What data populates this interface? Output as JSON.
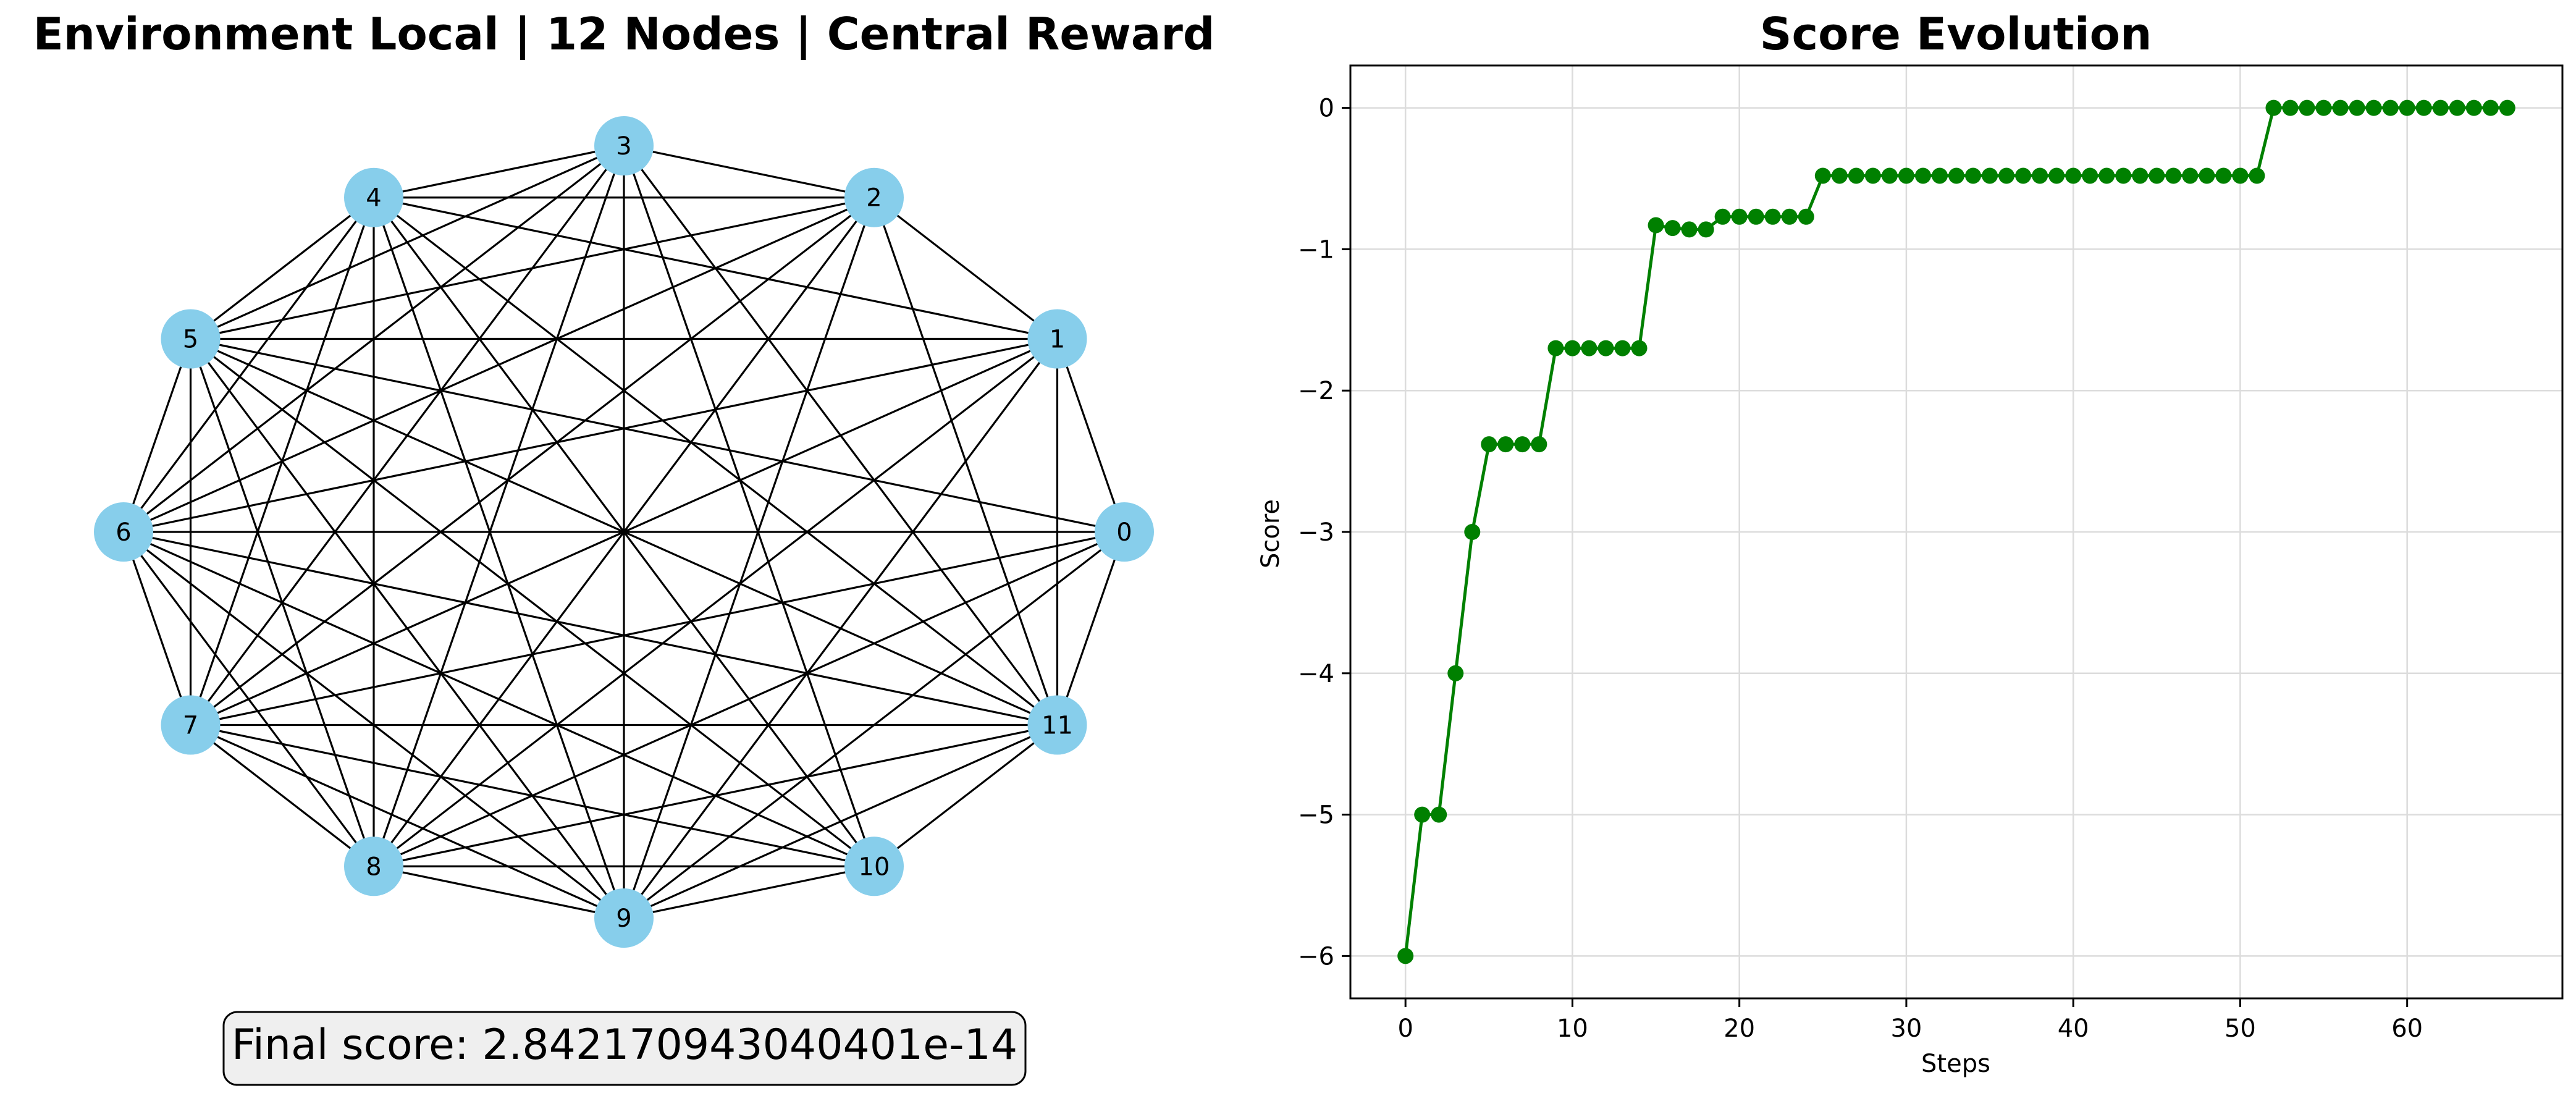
{
  "network": {
    "title": "Environment Local | 12 Nodes | Central Reward",
    "node_color": "#87ceeb",
    "edge_color": "#000000",
    "nodes": [
      "0",
      "1",
      "2",
      "3",
      "4",
      "5",
      "6",
      "7",
      "8",
      "9",
      "10",
      "11"
    ],
    "edges": [
      [
        0,
        1
      ],
      [
        0,
        5
      ],
      [
        0,
        6
      ],
      [
        0,
        7
      ],
      [
        0,
        8
      ],
      [
        0,
        9
      ],
      [
        0,
        11
      ],
      [
        1,
        2
      ],
      [
        1,
        4
      ],
      [
        1,
        5
      ],
      [
        1,
        6
      ],
      [
        1,
        7
      ],
      [
        1,
        8
      ],
      [
        1,
        9
      ],
      [
        1,
        11
      ],
      [
        2,
        3
      ],
      [
        2,
        4
      ],
      [
        2,
        5
      ],
      [
        2,
        6
      ],
      [
        2,
        7
      ],
      [
        2,
        8
      ],
      [
        2,
        9
      ],
      [
        2,
        11
      ],
      [
        3,
        4
      ],
      [
        3,
        5
      ],
      [
        3,
        6
      ],
      [
        3,
        7
      ],
      [
        3,
        8
      ],
      [
        3,
        9
      ],
      [
        3,
        10
      ],
      [
        3,
        11
      ],
      [
        4,
        5
      ],
      [
        4,
        6
      ],
      [
        4,
        7
      ],
      [
        4,
        8
      ],
      [
        4,
        9
      ],
      [
        4,
        10
      ],
      [
        4,
        11
      ],
      [
        5,
        6
      ],
      [
        5,
        7
      ],
      [
        5,
        8
      ],
      [
        5,
        9
      ],
      [
        5,
        10
      ],
      [
        5,
        11
      ],
      [
        6,
        7
      ],
      [
        6,
        8
      ],
      [
        6,
        9
      ],
      [
        6,
        10
      ],
      [
        6,
        11
      ],
      [
        7,
        8
      ],
      [
        7,
        9
      ],
      [
        7,
        10
      ],
      [
        7,
        11
      ],
      [
        8,
        9
      ],
      [
        8,
        10
      ],
      [
        8,
        11
      ],
      [
        9,
        10
      ],
      [
        9,
        11
      ],
      [
        10,
        11
      ]
    ],
    "final_score_text": "Final score: 2.842170943040401e-14"
  },
  "chart_data": {
    "type": "line",
    "title": "Score Evolution",
    "xlabel": "Steps",
    "ylabel": "Score",
    "xlim": [
      -3.3,
      69.3
    ],
    "ylim": [
      -6.3,
      0.3
    ],
    "xticks": [
      0,
      10,
      20,
      30,
      40,
      50,
      60
    ],
    "yticks": [
      -6,
      -5,
      -4,
      -3,
      -2,
      -1,
      0
    ],
    "ytick_labels": [
      "−6",
      "−5",
      "−4",
      "−3",
      "−2",
      "−1",
      "0"
    ],
    "grid": true,
    "marker": "circle",
    "color": "#008000",
    "series": [
      {
        "x": [
          0,
          1,
          2,
          3,
          4,
          5,
          6,
          7,
          8,
          9,
          10,
          11,
          12,
          13,
          14,
          15,
          16,
          17,
          18,
          19,
          20,
          21,
          22,
          23,
          24,
          25,
          26,
          27,
          28,
          29,
          30,
          31,
          32,
          33,
          34,
          35,
          36,
          37,
          38,
          39,
          40,
          41,
          42,
          43,
          44,
          45,
          46,
          47,
          48,
          49,
          50,
          51,
          52,
          53,
          54,
          55,
          56,
          57,
          58,
          59,
          60,
          61,
          62,
          63,
          64,
          65,
          66
        ],
        "values": [
          -6,
          -5,
          -5,
          -4,
          -3,
          -2.38,
          -2.38,
          -2.38,
          -2.38,
          -1.7,
          -1.7,
          -1.7,
          -1.7,
          -1.7,
          -1.7,
          -0.83,
          -0.85,
          -0.86,
          -0.86,
          -0.77,
          -0.77,
          -0.77,
          -0.77,
          -0.77,
          -0.77,
          -0.48,
          -0.48,
          -0.48,
          -0.48,
          -0.48,
          -0.48,
          -0.48,
          -0.48,
          -0.48,
          -0.48,
          -0.48,
          -0.48,
          -0.48,
          -0.48,
          -0.48,
          -0.48,
          -0.48,
          -0.48,
          -0.48,
          -0.48,
          -0.48,
          -0.48,
          -0.48,
          -0.48,
          -0.48,
          -0.48,
          -0.48,
          0,
          0,
          0,
          0,
          0,
          0,
          0,
          0,
          0,
          0,
          0,
          0,
          0,
          0,
          0
        ]
      }
    ]
  }
}
